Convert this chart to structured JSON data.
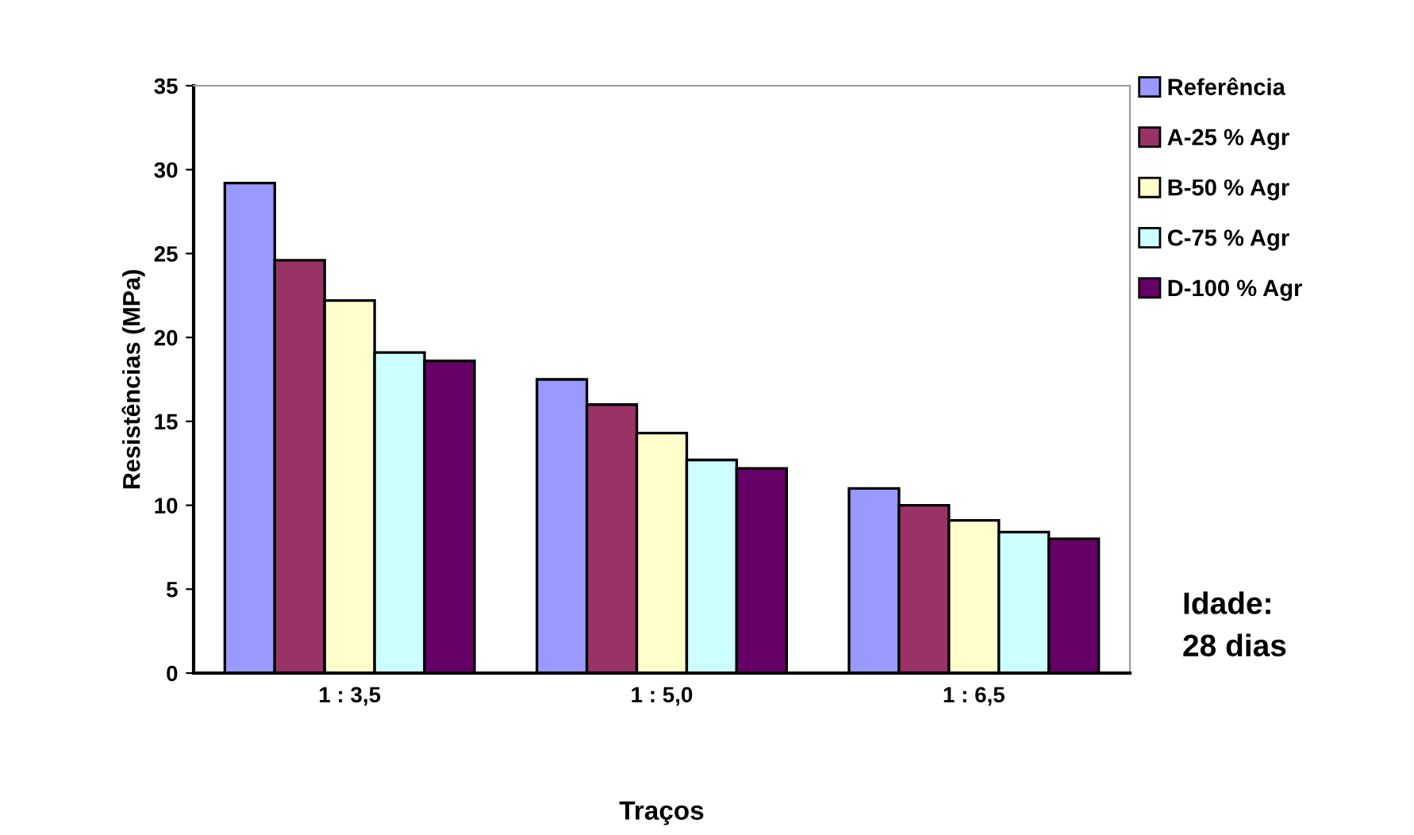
{
  "chart_data": {
    "type": "bar",
    "xlabel": "Traços",
    "ylabel": "Resistências (MPa)",
    "categories": [
      "1 : 3,5",
      "1 : 5,0",
      "1 : 6,5"
    ],
    "series": [
      {
        "name": "Referência",
        "color": "#9999ff",
        "values": [
          29.2,
          17.5,
          11.0
        ]
      },
      {
        "name": "A-25 % Agr",
        "color": "#993366",
        "values": [
          24.6,
          16.0,
          10.0
        ]
      },
      {
        "name": "B-50 % Agr",
        "color": "#ffffcc",
        "values": [
          22.2,
          14.3,
          9.1
        ]
      },
      {
        "name": "C-75 % Agr",
        "color": "#ccffff",
        "values": [
          19.1,
          12.7,
          8.4
        ]
      },
      {
        "name": "D-100 % Agr",
        "color": "#660066",
        "values": [
          18.6,
          12.2,
          8.0
        ]
      }
    ],
    "ylim": [
      0,
      35
    ],
    "yticks": [
      0,
      5,
      10,
      15,
      20,
      25,
      30,
      35
    ],
    "grid": false,
    "legend": "top right",
    "annotations": [
      "Idade:\n28 dias"
    ]
  }
}
